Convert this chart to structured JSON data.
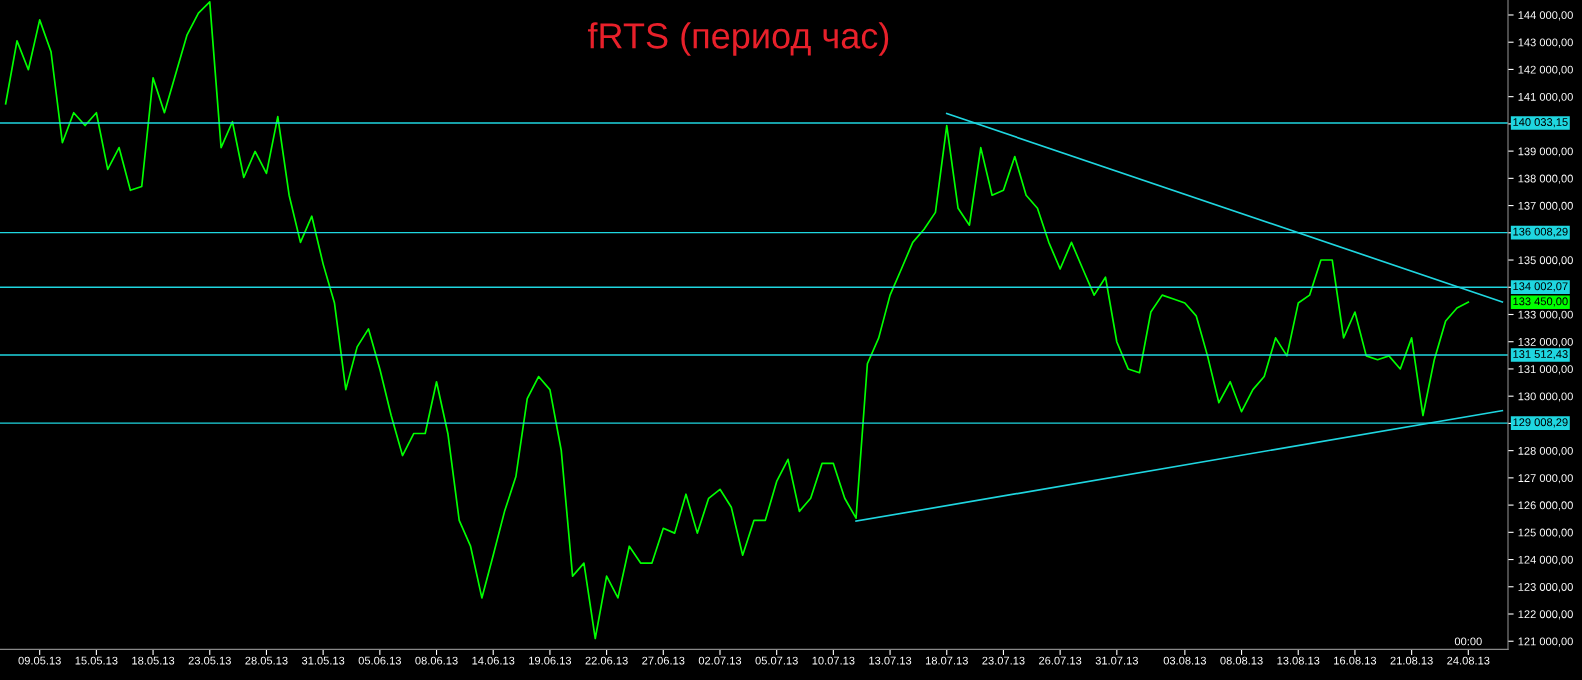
{
  "chart_data": {
    "type": "line",
    "title": "fRTS (период час)",
    "ylim": [
      120700,
      144550
    ],
    "categories": [
      null,
      null,
      null,
      "09.05.13",
      null,
      null,
      null,
      null,
      "15.05.13",
      null,
      null,
      null,
      null,
      "18.05.13",
      null,
      null,
      null,
      null,
      "23.05.13",
      null,
      null,
      null,
      null,
      "28.05.13",
      null,
      null,
      null,
      null,
      "31.05.13",
      null,
      null,
      null,
      null,
      "05.06.13",
      null,
      null,
      null,
      null,
      "08.06.13",
      null,
      null,
      null,
      null,
      "14.06.13",
      null,
      null,
      null,
      null,
      "19.06.13",
      null,
      null,
      null,
      null,
      "22.06.13",
      null,
      null,
      null,
      null,
      "27.06.13",
      null,
      null,
      null,
      null,
      "02.07.13",
      null,
      null,
      null,
      null,
      "05.07.13",
      null,
      null,
      null,
      null,
      "10.07.13",
      null,
      null,
      null,
      null,
      "13.07.13",
      null,
      null,
      null,
      null,
      "18.07.13",
      null,
      null,
      null,
      null,
      "23.07.13",
      null,
      null,
      null,
      null,
      "26.07.13",
      null,
      null,
      null,
      null,
      "31.07.13",
      null,
      null,
      null,
      null,
      null,
      "03.08.13",
      null,
      null,
      null,
      null,
      "08.08.13",
      null,
      null,
      null,
      null,
      "13.08.13",
      null,
      null,
      null,
      null,
      "16.08.13",
      null,
      null,
      null,
      null,
      "21.08.13",
      null,
      null,
      null,
      null,
      "24.08.13",
      null,
      null,
      null
    ],
    "yticks": [
      {
        "value": 121000,
        "label": "121 000,00"
      },
      {
        "value": 122000,
        "label": "122 000,00"
      },
      {
        "value": 123000,
        "label": "123 000,00"
      },
      {
        "value": 124000,
        "label": "124 000,00"
      },
      {
        "value": 125000,
        "label": "125 000,00"
      },
      {
        "value": 126000,
        "label": "126 000,00"
      },
      {
        "value": 127000,
        "label": "127 000,00"
      },
      {
        "value": 128000,
        "label": "128 000,00"
      },
      {
        "value": 129000,
        "label": null
      },
      {
        "value": 130000,
        "label": "130 000,00"
      },
      {
        "value": 131000,
        "label": "131 000,00"
      },
      {
        "value": 132000,
        "label": "132 000,00"
      },
      {
        "value": 133000,
        "label": "133 000,00"
      },
      {
        "value": 134000,
        "label": null
      },
      {
        "value": 135000,
        "label": "135 000,00"
      },
      {
        "value": 136000,
        "label": null
      },
      {
        "value": 137000,
        "label": "137 000,00"
      },
      {
        "value": 138000,
        "label": "138 000,00"
      },
      {
        "value": 139000,
        "label": "139 000,00"
      },
      {
        "value": 140000,
        "label": null
      },
      {
        "value": 141000,
        "label": "141 000,00"
      },
      {
        "value": 142000,
        "label": "142 000,00"
      },
      {
        "value": 143000,
        "label": "143 000,00"
      },
      {
        "value": 144000,
        "label": "144 000,00"
      }
    ],
    "grid": false,
    "marker": "none",
    "line_style": "solid",
    "series": [
      {
        "color": "#00ff00",
        "values": [
          140740,
          143050,
          141990,
          143820,
          142650,
          139310,
          140410,
          139940,
          140410,
          138330,
          139130,
          137560,
          137700,
          141690,
          140410,
          141840,
          143270,
          144070,
          144480,
          139130,
          140080,
          138030,
          138990,
          138180,
          140270,
          137380,
          135650,
          136610,
          134850,
          133420,
          130240,
          131810,
          132470,
          131000,
          129290,
          127820,
          128630,
          128630,
          130530,
          128630,
          125440,
          124490,
          122590,
          124160,
          125770,
          127050,
          129910,
          130720,
          130240,
          128010,
          123390,
          123870,
          121100,
          123390,
          122590,
          124490,
          123870,
          123870,
          125150,
          124970,
          126400,
          124970,
          126250,
          126580,
          125920,
          124160,
          125440,
          125440,
          126870,
          127680,
          125770,
          126250,
          127530,
          127530,
          126250,
          125520,
          131190,
          132140,
          133710,
          134670,
          135650,
          136130,
          136750,
          139940,
          136900,
          136280,
          139130,
          137380,
          137560,
          138800,
          137380,
          136900,
          135650,
          134670,
          135650,
          134670,
          133710,
          134370,
          131990,
          131000,
          130860,
          133090,
          133710,
          133570,
          133420,
          132950,
          131480,
          129760,
          130530,
          129430,
          130240,
          130720,
          132140,
          131480,
          133420,
          133710,
          135000,
          135000,
          132140,
          133090,
          131480,
          131340,
          131480,
          131000,
          132140,
          129290,
          131340,
          132760,
          133240,
          133450,
          null,
          null,
          null
        ]
      },
      {
        "color": "#1fd6e0",
        "values": [
          null,
          null,
          null,
          null,
          null,
          null,
          null,
          null,
          null,
          null,
          null,
          null,
          null,
          null,
          null,
          null,
          null,
          null,
          null,
          null,
          null,
          null,
          null,
          null,
          null,
          null,
          null,
          null,
          null,
          null,
          null,
          null,
          null,
          null,
          null,
          null,
          null,
          null,
          null,
          null,
          null,
          null,
          null,
          null,
          null,
          null,
          null,
          null,
          null,
          null,
          null,
          null,
          null,
          null,
          null,
          null,
          null,
          null,
          null,
          null,
          null,
          null,
          null,
          null,
          null,
          null,
          null,
          null,
          null,
          null,
          null,
          null,
          null,
          null,
          null,
          125410,
          null,
          null,
          null,
          null,
          null,
          null,
          null,
          null,
          null,
          null,
          null,
          null,
          null,
          null,
          null,
          null,
          null,
          null,
          null,
          null,
          null,
          null,
          null,
          null,
          null,
          null,
          null,
          null,
          null,
          null,
          null,
          null,
          null,
          null,
          null,
          null,
          null,
          null,
          null,
          null,
          null,
          null,
          null,
          null,
          null,
          null,
          null,
          null,
          null,
          null,
          null,
          null,
          null,
          null,
          null,
          null,
          129470
        ]
      },
      {
        "color": "#1fd6e0",
        "values": [
          null,
          null,
          null,
          null,
          null,
          null,
          null,
          null,
          null,
          null,
          null,
          null,
          null,
          null,
          null,
          null,
          null,
          null,
          null,
          null,
          null,
          null,
          null,
          null,
          null,
          null,
          null,
          null,
          null,
          null,
          null,
          null,
          null,
          null,
          null,
          null,
          null,
          null,
          null,
          null,
          null,
          null,
          null,
          null,
          null,
          null,
          null,
          null,
          null,
          null,
          null,
          null,
          null,
          null,
          null,
          null,
          null,
          null,
          null,
          null,
          null,
          null,
          null,
          null,
          null,
          null,
          null,
          null,
          null,
          null,
          null,
          null,
          null,
          null,
          null,
          null,
          null,
          null,
          null,
          null,
          null,
          null,
          null,
          140380,
          null,
          null,
          null,
          null,
          null,
          null,
          null,
          null,
          null,
          null,
          null,
          null,
          null,
          null,
          null,
          null,
          null,
          null,
          null,
          null,
          null,
          null,
          null,
          null,
          null,
          null,
          null,
          null,
          null,
          null,
          null,
          null,
          null,
          null,
          null,
          null,
          null,
          null,
          null,
          null,
          null,
          null,
          null,
          null,
          null,
          null,
          null,
          null,
          133460
        ]
      }
    ],
    "ref_lines": [
      {
        "axis": "y",
        "value": 140033.15,
        "label": "140 033,15",
        "color": "#1fd6e0",
        "line_style": "solid"
      },
      {
        "axis": "y",
        "value": 136008.29,
        "label": "136 008,29",
        "color": "#1fd6e0",
        "line_style": "solid"
      },
      {
        "axis": "y",
        "value": 134002.07,
        "label": "134 002,07",
        "color": "#1fd6e0",
        "line_style": "solid"
      },
      {
        "axis": "y",
        "value": 131512.43,
        "label": "131 512,43",
        "color": "#1fd6e0",
        "line_style": "solid"
      },
      {
        "axis": "y",
        "value": 129008.29,
        "label": "129 008,29",
        "color": "#1fd6e0",
        "line_style": "solid"
      }
    ],
    "annotations": [
      "133 450,00",
      "00:00"
    ]
  }
}
